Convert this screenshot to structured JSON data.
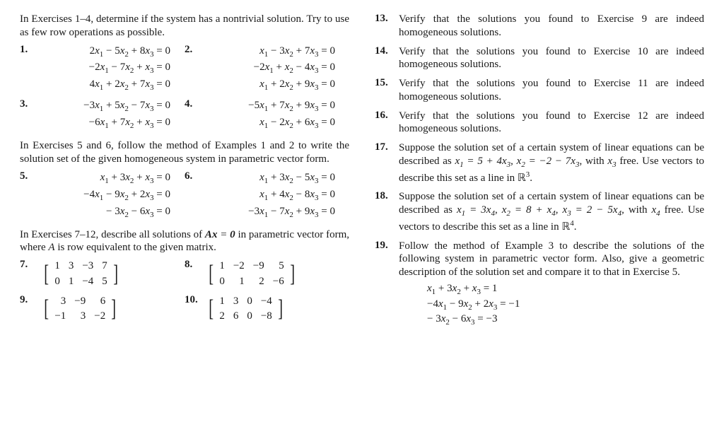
{
  "left": {
    "intro14": "In Exercises 1–4, determine if the system has a nontrivial solution. Try to use as few row operations as possible.",
    "ex1": {
      "num": "1.",
      "lines": [
        "2x₁ − 5x₂ + 8x₃ = 0",
        "−2x₁ − 7x₂ +  x₃ = 0",
        "4x₁ + 2x₂ + 7x₃ = 0"
      ]
    },
    "ex2": {
      "num": "2.",
      "lines": [
        "x₁ − 3x₂ + 7x₃ = 0",
        "−2x₁ +  x₂ − 4x₃ = 0",
        "x₁ + 2x₂ + 9x₃ = 0"
      ]
    },
    "ex3": {
      "num": "3.",
      "lines": [
        "−3x₁ + 5x₂ − 7x₃ = 0",
        "−6x₁ + 7x₂ +  x₃ = 0"
      ]
    },
    "ex4": {
      "num": "4.",
      "lines": [
        "−5x₁ + 7x₂ + 9x₃ = 0",
        "x₁ − 2x₂ + 6x₃ = 0"
      ]
    },
    "intro56": "In Exercises 5 and 6, follow the method of Examples 1 and 2 to write the solution set of the given homogeneous system in parametric vector form.",
    "ex5": {
      "num": "5.",
      "lines": [
        "x₁ + 3x₂ +  x₃ = 0",
        "−4x₁ − 9x₂ + 2x₃ = 0",
        "− 3x₂ − 6x₃ = 0"
      ]
    },
    "ex6": {
      "num": "6.",
      "lines": [
        "x₁ + 3x₂ − 5x₃ = 0",
        "x₁ + 4x₂ − 8x₃ = 0",
        "−3x₁ − 7x₂ + 9x₃ = 0"
      ]
    },
    "intro712_a": "In Exercises 7–12, describe all solutions of ",
    "intro712_eq": "Ax = 0",
    "intro712_b": " in parametric vector form, where ",
    "intro712_c": "A",
    "intro712_d": " is row equivalent to the given matrix.",
    "ex7": {
      "num": "7.",
      "rows": [
        [
          "1",
          "3",
          "−3",
          "7"
        ],
        [
          "0",
          "1",
          "−4",
          "5"
        ]
      ]
    },
    "ex8": {
      "num": "8.",
      "rows": [
        [
          "1",
          "−2",
          "−9",
          "5"
        ],
        [
          "0",
          "1",
          "2",
          "−6"
        ]
      ]
    },
    "ex9": {
      "num": "9.",
      "rows": [
        [
          "3",
          "−9",
          "6"
        ],
        [
          "−1",
          "3",
          "−2"
        ]
      ]
    },
    "ex10": {
      "num": "10.",
      "rows": [
        [
          "1",
          "3",
          "0",
          "−4"
        ],
        [
          "2",
          "6",
          "0",
          "−8"
        ]
      ]
    }
  },
  "right": {
    "ex13": {
      "num": "13.",
      "text": "Verify that the solutions you found to Exercise 9 are indeed homogeneous solutions."
    },
    "ex14": {
      "num": "14.",
      "text": "Verify that the solutions you found to Exercise 10 are indeed homogeneous solutions."
    },
    "ex15": {
      "num": "15.",
      "text": "Verify that the solutions you found to Exercise 11 are indeed homogeneous solutions."
    },
    "ex16": {
      "num": "16.",
      "text": "Verify that the solutions you found to Exercise 12 are indeed homogeneous solutions."
    },
    "ex17": {
      "num": "17.",
      "text_a": "Suppose the solution set of a certain system of linear equations can be described as ",
      "eq1": "x₁ = 5 + 4x₃",
      "sep1": ", ",
      "eq2": "x₂ = −2 − 7x₃",
      "text_b": ", with ",
      "eq3": "x₃",
      "text_c": " free. Use vectors to describe this set as a line in ℝ³."
    },
    "ex18": {
      "num": "18.",
      "text_a": "Suppose the solution set of a certain system of linear equations can be described as ",
      "eq1": "x₁ = 3x₄",
      "sep1": ", ",
      "eq2": "x₂ = 8 + x₄",
      "sep2": ", ",
      "eq3": "x₃ = 2 − 5x₄",
      "text_b": ", with ",
      "eq4": "x₄",
      "text_c": " free. Use vectors to describe this set as a line in ℝ⁴."
    },
    "ex19": {
      "num": "19.",
      "text": "Follow the method of Example 3 to describe the solutions of the following system in parametric vector form. Also, give a geometric description of the solution set and compare it to that in Exercise 5.",
      "lines": [
        "x₁ + 3x₂ +  x₃ =  1",
        "−4x₁ − 9x₂ + 2x₃ = −1",
        "− 3x₂ − 6x₃ = −3"
      ]
    }
  }
}
